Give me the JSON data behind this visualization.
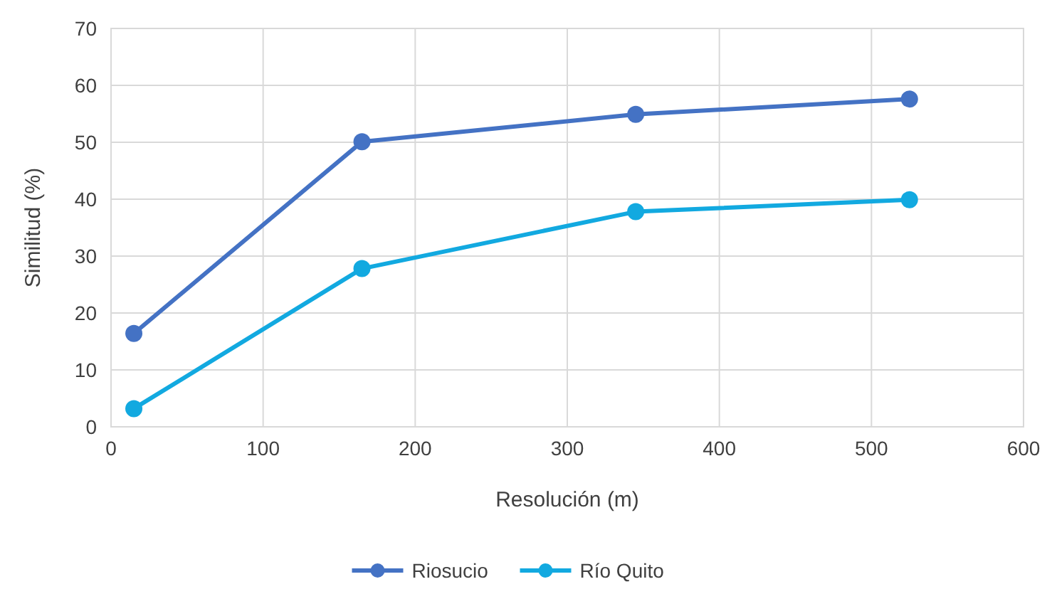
{
  "chart_data": {
    "type": "line",
    "xlabel": "Resolución (m)",
    "ylabel": "Similitud (%)",
    "xlim": [
      0,
      600
    ],
    "xticks": [
      0,
      100,
      200,
      300,
      400,
      500,
      600
    ],
    "ylim": [
      0,
      70
    ],
    "yticks": [
      0,
      10,
      20,
      30,
      40,
      50,
      60,
      70
    ],
    "grid": true,
    "legend": "bottom",
    "marker": "circle",
    "line_style": "solid",
    "series": [
      {
        "name": "Riosucio",
        "color": "#4472c4",
        "x": [
          15,
          165,
          345,
          525
        ],
        "values": [
          16.4,
          50.1,
          54.9,
          57.6
        ]
      },
      {
        "name": "Río Quito",
        "color": "#12a9e0",
        "x": [
          15,
          165,
          345,
          525
        ],
        "values": [
          3.2,
          27.8,
          37.8,
          39.9
        ]
      }
    ]
  }
}
